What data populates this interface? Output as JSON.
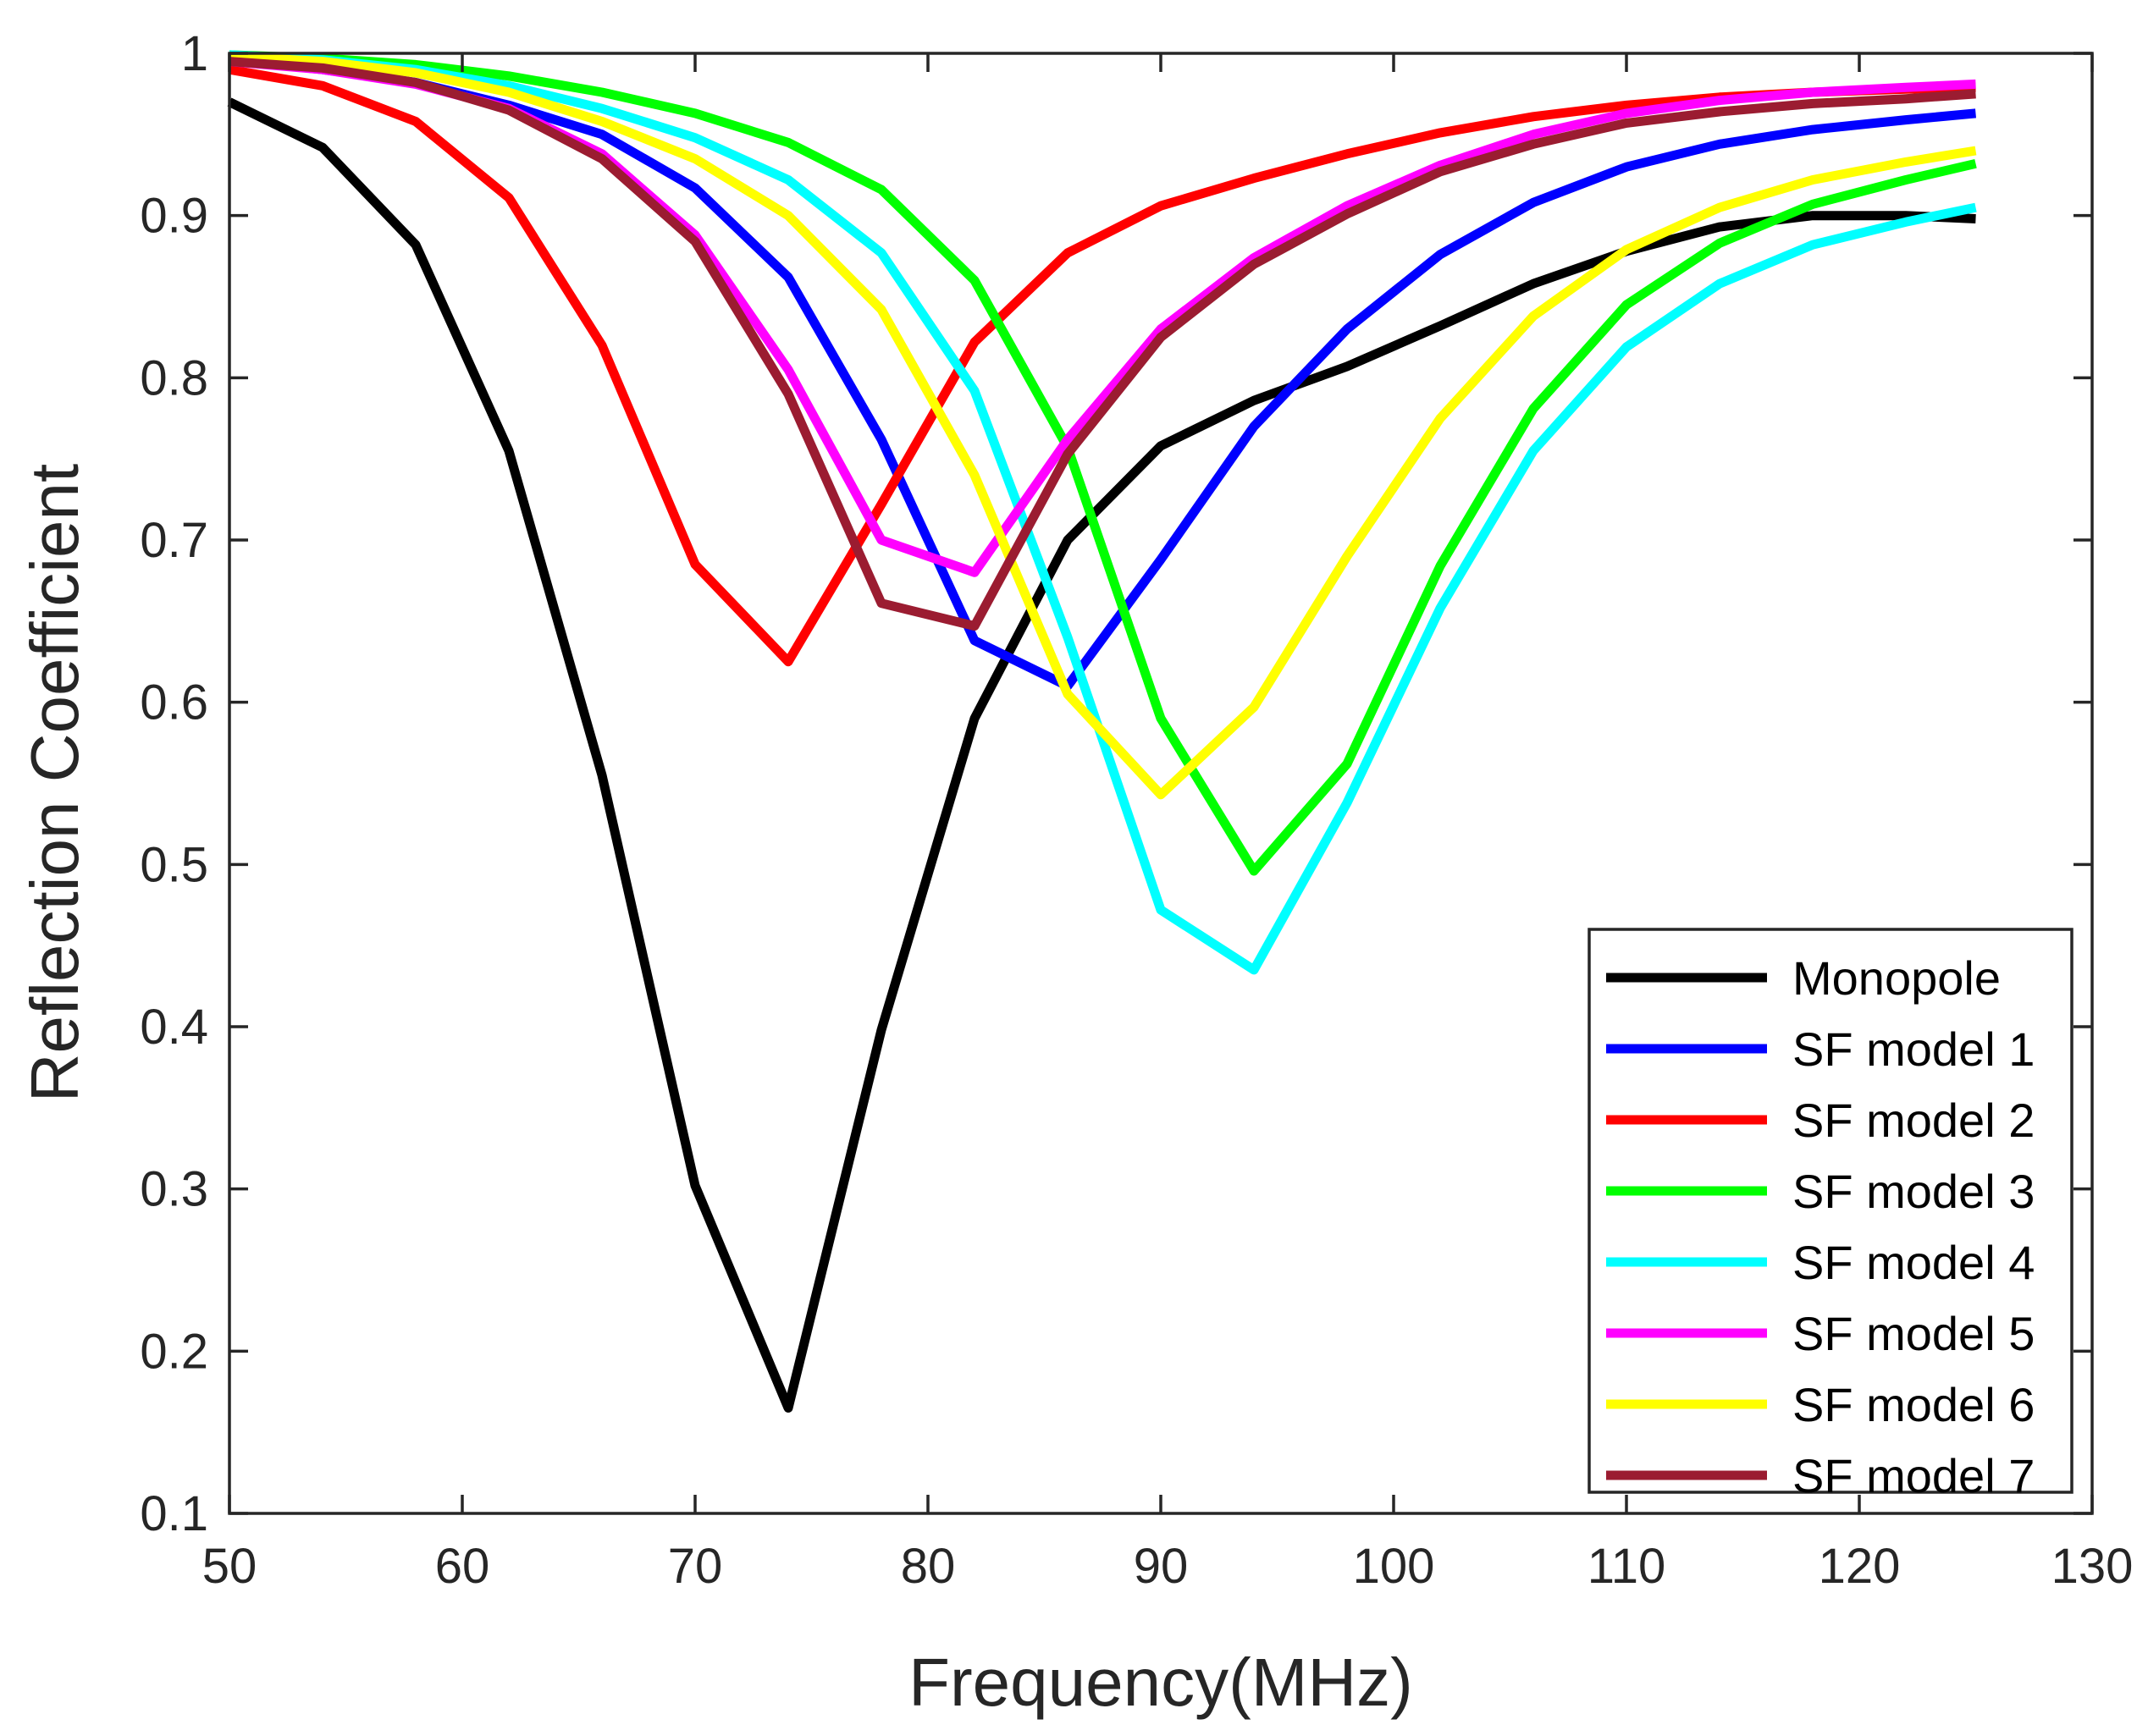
{
  "chart_data": {
    "type": "line",
    "title": "",
    "xlabel": "Frequency(MHz)",
    "ylabel": "Reflection Coefficient",
    "xlim": [
      50,
      130
    ],
    "ylim": [
      0.1,
      1
    ],
    "xticks": [
      50,
      60,
      70,
      80,
      90,
      100,
      110,
      120,
      130
    ],
    "yticks": [
      0.1,
      0.2,
      0.3,
      0.4,
      0.5,
      0.6,
      0.7,
      0.8,
      0.9,
      1
    ],
    "xtick_labels": [
      "50",
      "60",
      "70",
      "80",
      "90",
      "100",
      "110",
      "120",
      "130"
    ],
    "ytick_labels": [
      "0.1",
      "0.2",
      "0.3",
      "0.4",
      "0.5",
      "0.6",
      "0.7",
      "0.8",
      "0.9",
      "1"
    ],
    "grid": false,
    "legend_position": "bottom-right",
    "x": [
      50,
      54,
      58,
      62,
      66,
      70,
      74,
      78,
      82,
      86,
      90,
      94,
      98,
      102,
      106,
      110,
      114,
      118,
      122,
      125
    ],
    "series": [
      {
        "name": "Monopole",
        "color": "#000000",
        "values": [
          0.97,
          0.942,
          0.882,
          0.755,
          0.555,
          0.302,
          0.165,
          0.398,
          0.59,
          0.7,
          0.758,
          0.786,
          0.807,
          0.832,
          0.858,
          0.878,
          0.893,
          0.9,
          0.9,
          0.898
        ]
      },
      {
        "name": "SF model 1",
        "color": "#0000ff",
        "values": [
          0.996,
          0.99,
          0.982,
          0.968,
          0.95,
          0.917,
          0.862,
          0.762,
          0.638,
          0.61,
          0.688,
          0.77,
          0.83,
          0.876,
          0.908,
          0.93,
          0.944,
          0.953,
          0.959,
          0.963
        ]
      },
      {
        "name": "SF model 2",
        "color": "#ff0000",
        "values": [
          0.99,
          0.98,
          0.958,
          0.911,
          0.82,
          0.685,
          0.625,
          0.722,
          0.822,
          0.877,
          0.906,
          0.923,
          0.938,
          0.951,
          0.961,
          0.968,
          0.973,
          0.976,
          0.978,
          0.979
        ]
      },
      {
        "name": "SF model 3",
        "color": "#00ff00",
        "values": [
          0.999,
          0.997,
          0.993,
          0.986,
          0.976,
          0.963,
          0.945,
          0.916,
          0.86,
          0.757,
          0.59,
          0.496,
          0.562,
          0.684,
          0.781,
          0.845,
          0.883,
          0.907,
          0.922,
          0.932
        ]
      },
      {
        "name": "SF model 4",
        "color": "#00ffff",
        "values": [
          0.999,
          0.996,
          0.99,
          0.98,
          0.966,
          0.948,
          0.922,
          0.877,
          0.792,
          0.64,
          0.472,
          0.435,
          0.538,
          0.658,
          0.755,
          0.819,
          0.858,
          0.882,
          0.896,
          0.905
        ]
      },
      {
        "name": "SF model 5",
        "color": "#ff00ff",
        "values": [
          0.995,
          0.99,
          0.981,
          0.966,
          0.938,
          0.888,
          0.805,
          0.7,
          0.68,
          0.762,
          0.83,
          0.874,
          0.906,
          0.931,
          0.95,
          0.963,
          0.971,
          0.976,
          0.979,
          0.981
        ]
      },
      {
        "name": "SF model 6",
        "color": "#ffff00",
        "values": [
          0.998,
          0.995,
          0.988,
          0.976,
          0.958,
          0.935,
          0.9,
          0.842,
          0.74,
          0.605,
          0.543,
          0.597,
          0.69,
          0.775,
          0.838,
          0.879,
          0.905,
          0.922,
          0.933,
          0.94
        ]
      },
      {
        "name": "SF model 7",
        "color": "#9b1c31",
        "values": [
          0.995,
          0.991,
          0.982,
          0.965,
          0.935,
          0.884,
          0.79,
          0.661,
          0.647,
          0.753,
          0.825,
          0.87,
          0.901,
          0.927,
          0.944,
          0.957,
          0.964,
          0.969,
          0.972,
          0.975
        ]
      }
    ]
  }
}
